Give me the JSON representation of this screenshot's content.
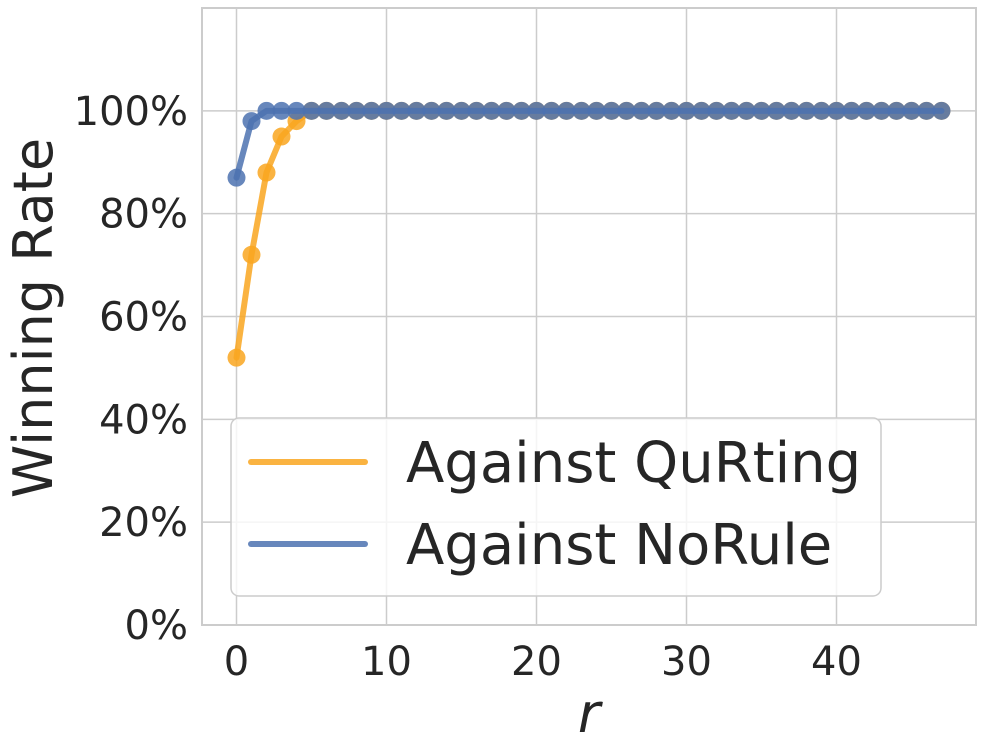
{
  "chart_data": {
    "type": "line",
    "title": "",
    "xlabel": "r",
    "ylabel": "Winning Rate",
    "xlim": [
      -2.3,
      49.3
    ],
    "ylim": [
      0,
      1.2
    ],
    "xticks": [
      0,
      10,
      20,
      30,
      40
    ],
    "yticks": [
      0,
      0.2,
      0.4,
      0.6,
      0.8,
      1.0
    ],
    "ytick_labels": [
      "0%",
      "20%",
      "40%",
      "60%",
      "80%",
      "100%"
    ],
    "grid": true,
    "legend_position": "lower-center",
    "series": [
      {
        "name": "Against QuRting",
        "color": "#f9a620",
        "x": [
          0,
          1,
          2,
          3,
          4,
          5,
          6,
          7,
          8,
          9,
          10,
          11,
          12,
          13,
          14,
          15,
          16,
          17,
          18,
          19,
          20,
          21,
          22,
          23,
          24,
          25,
          26,
          27,
          28,
          29,
          30,
          31,
          32,
          33,
          34,
          35,
          36,
          37,
          38,
          39,
          40,
          41,
          42,
          43,
          44,
          45,
          46,
          47
        ],
        "y": [
          0.52,
          0.72,
          0.88,
          0.95,
          0.98,
          1,
          1,
          1,
          1,
          1,
          1,
          1,
          1,
          1,
          1,
          1,
          1,
          1,
          1,
          1,
          1,
          1,
          1,
          1,
          1,
          1,
          1,
          1,
          1,
          1,
          1,
          1,
          1,
          1,
          1,
          1,
          1,
          1,
          1,
          1,
          1,
          1,
          1,
          1,
          1,
          1,
          1,
          1
        ]
      },
      {
        "name": "Against NoRule",
        "color": "#4c72b0",
        "x": [
          0,
          1,
          2,
          3,
          4,
          5,
          6,
          7,
          8,
          9,
          10,
          11,
          12,
          13,
          14,
          15,
          16,
          17,
          18,
          19,
          20,
          21,
          22,
          23,
          24,
          25,
          26,
          27,
          28,
          29,
          30,
          31,
          32,
          33,
          34,
          35,
          36,
          37,
          38,
          39,
          40,
          41,
          42,
          43,
          44,
          45,
          46,
          47
        ],
        "y": [
          0.87,
          0.98,
          1,
          1,
          1,
          1,
          1,
          1,
          1,
          1,
          1,
          1,
          1,
          1,
          1,
          1,
          1,
          1,
          1,
          1,
          1,
          1,
          1,
          1,
          1,
          1,
          1,
          1,
          1,
          1,
          1,
          1,
          1,
          1,
          1,
          1,
          1,
          1,
          1,
          1,
          1,
          1,
          1,
          1,
          1,
          1,
          1,
          1
        ]
      }
    ]
  }
}
